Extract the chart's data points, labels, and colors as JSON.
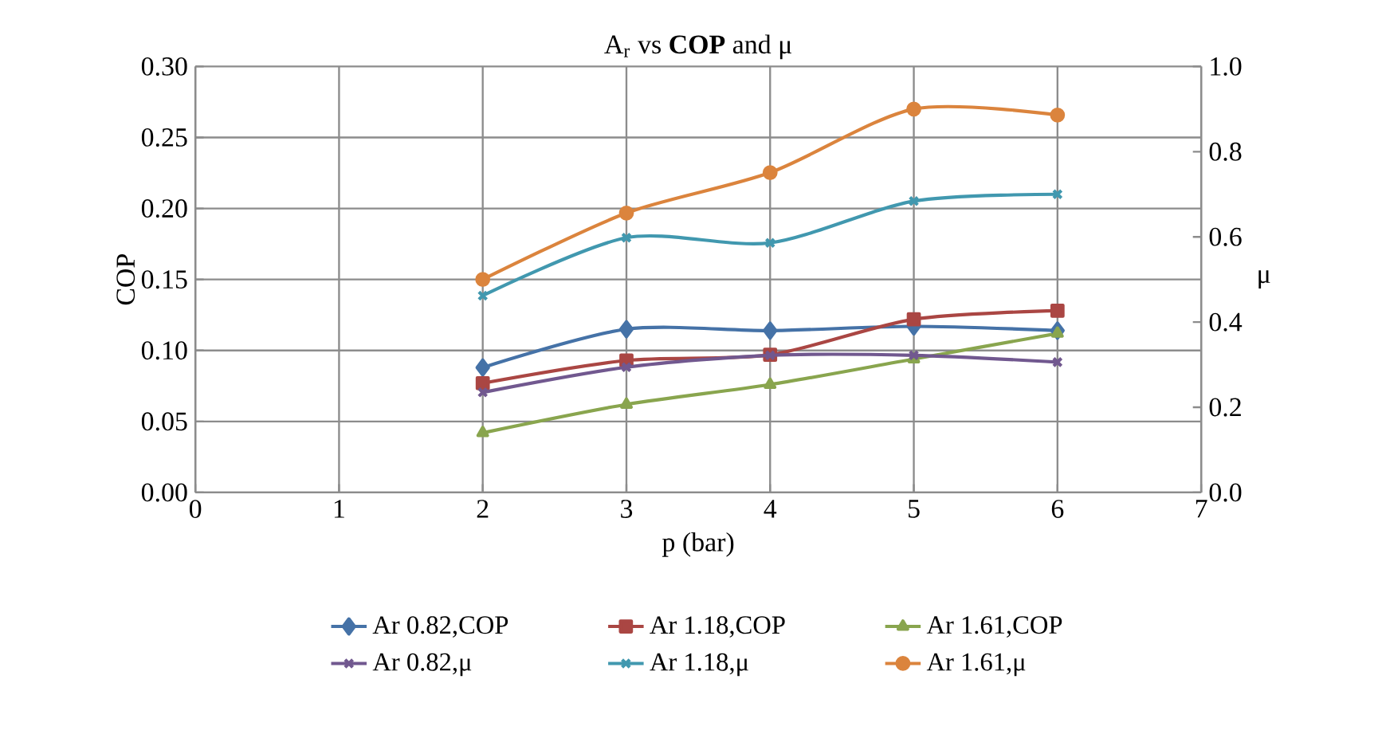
{
  "chart_data": {
    "type": "line",
    "title": "A$_{r}$ vs **COP** and μ",
    "xlabel": "p (bar)",
    "ylabel": "COP",
    "y2label": "μ",
    "xlim": [
      0,
      7
    ],
    "xticks": [
      0,
      1,
      2,
      3,
      4,
      5,
      6,
      7
    ],
    "ylim": [
      0,
      0.3
    ],
    "yticks": [
      {
        "value": 0,
        "label": "0.00"
      },
      {
        "value": 0.05,
        "label": "0.05"
      },
      {
        "value": 0.1,
        "label": "0.10"
      },
      {
        "value": 0.15,
        "label": "0.15"
      },
      {
        "value": 0.2,
        "label": "0.20"
      },
      {
        "value": 0.25,
        "label": "0.25"
      },
      {
        "value": 0.3,
        "label": "0.30"
      }
    ],
    "y2lim": [
      0,
      1
    ],
    "y2ticks": [
      {
        "value": 0,
        "label": "0.0"
      },
      {
        "value": 0.2,
        "label": "0.2"
      },
      {
        "value": 0.4,
        "label": "0.4"
      },
      {
        "value": 0.6,
        "label": "0.6"
      },
      {
        "value": 0.8,
        "label": "0.8"
      },
      {
        "value": 1,
        "label": "1.0"
      }
    ],
    "x": [
      2,
      3,
      4,
      5,
      6
    ],
    "grid": true,
    "legend": "bottom",
    "line_style": "solid",
    "series": [
      {
        "name": "Ar 0.82,COP",
        "color": "#4572a7",
        "marker": "diamond",
        "values": [
          0.088,
          0.115,
          0.114,
          0.117,
          0.114
        ]
      },
      {
        "name": "Ar 1.18,COP",
        "color": "#aa4643",
        "marker": "square",
        "values": [
          0.077,
          0.093,
          0.097,
          0.122,
          0.128
        ]
      },
      {
        "name": "Ar 1.61,COP",
        "color": "#89a54e",
        "marker": "triangle",
        "values": [
          0.042,
          0.062,
          0.076,
          0.094,
          0.112
        ]
      },
      {
        "name": "Ar 0.82,μ",
        "color": "#71588f",
        "marker": "cross",
        "axis": "y2",
        "values": [
          0.235,
          0.294,
          0.322,
          0.322,
          0.306
        ]
      },
      {
        "name": "Ar 1.18,μ",
        "color": "#4198af",
        "marker": "cross",
        "axis": "y2",
        "values": [
          0.462,
          0.598,
          0.586,
          0.684,
          0.7
        ]
      },
      {
        "name": "Ar 1.61,μ",
        "color": "#db843d",
        "marker": "circle",
        "axis": "y2",
        "values": [
          0.5,
          0.656,
          0.751,
          0.9,
          0.886
        ]
      }
    ]
  }
}
